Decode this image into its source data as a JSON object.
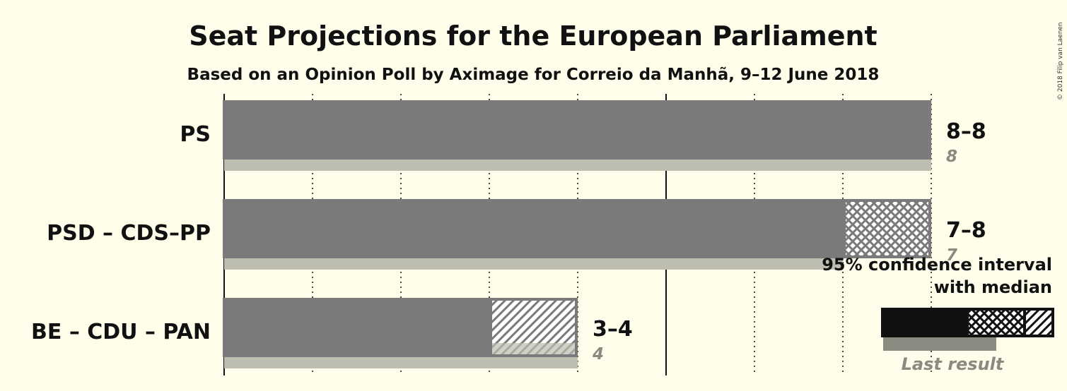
{
  "title": "Seat Projections for the European Parliament",
  "subtitle": "Based on an Opinion Poll by Aximage for Correio da Manhã, 9–12 June 2018",
  "copyright": "© 2018 Filip van Laenen",
  "colors": {
    "background": "#FFFEEB",
    "bar": "#7A7A7A",
    "last_result": "#BDBDB0",
    "legend_solid": "#111111",
    "legend_last": "#8A8A80"
  },
  "legend": {
    "line1": "95% confidence interval",
    "line2": "with median",
    "last_result": "Last result"
  },
  "chart_data": {
    "type": "bar",
    "orientation": "horizontal",
    "xlim": [
      0,
      8
    ],
    "major_gridlines": [
      0,
      5
    ],
    "minor_gridlines": [
      1,
      2,
      3,
      4,
      6,
      7,
      8
    ],
    "parties": [
      {
        "party": "PS",
        "ci_low": 8,
        "median": 8,
        "ci_high": 8,
        "range_label": "8–8",
        "last_result": 8,
        "last_label": "8"
      },
      {
        "party": "PSD – CDS–PP",
        "ci_low": 7,
        "median": 8,
        "ci_high": 8,
        "range_label": "7–8",
        "last_result": 7,
        "last_label": "7"
      },
      {
        "party": "BE – CDU – PAN",
        "ci_low": 3,
        "median": 3,
        "ci_high": 4,
        "range_label": "3–4",
        "last_result": 4,
        "last_label": "4"
      }
    ]
  }
}
